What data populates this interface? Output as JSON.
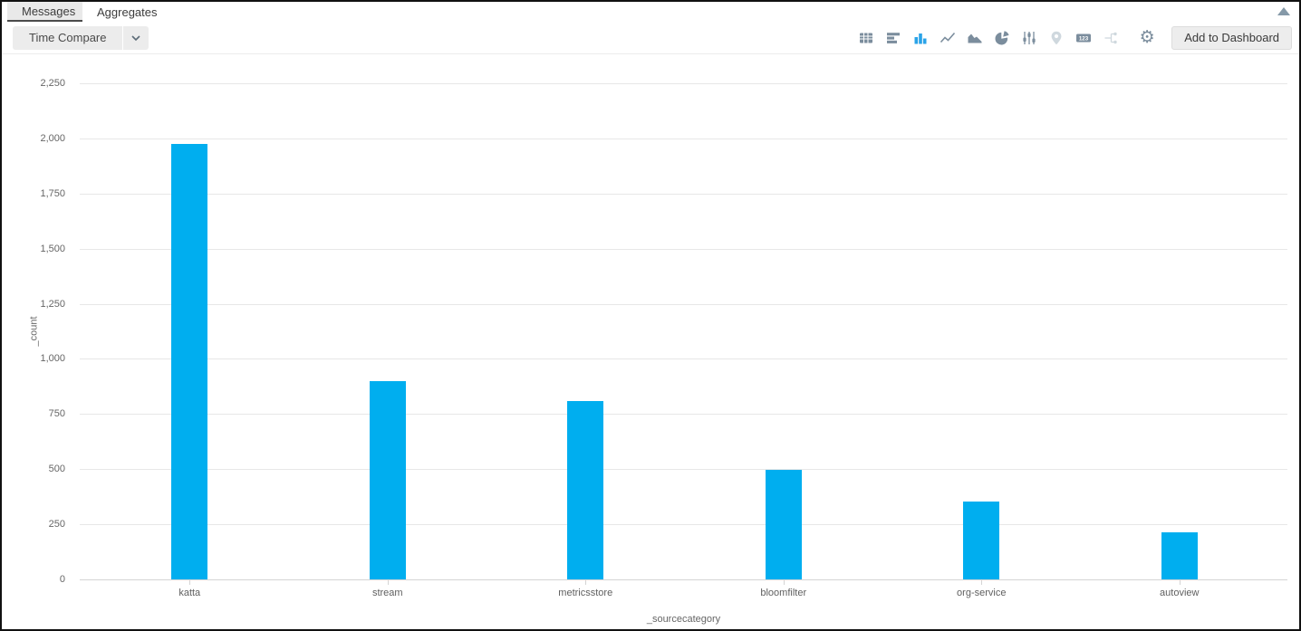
{
  "tabs": {
    "messages": "Messages",
    "aggregates": "Aggregates"
  },
  "toolbar": {
    "time_compare_label": "Time Compare",
    "add_to_dashboard_label": "Add to Dashboard",
    "single_value_icon_text": "123",
    "icons": [
      {
        "name": "table-icon",
        "state": "normal"
      },
      {
        "name": "horizontal-bar-chart-icon",
        "state": "normal"
      },
      {
        "name": "column-chart-icon",
        "state": "active"
      },
      {
        "name": "line-chart-icon",
        "state": "normal"
      },
      {
        "name": "area-chart-icon",
        "state": "normal"
      },
      {
        "name": "pie-chart-icon",
        "state": "normal"
      },
      {
        "name": "box-plot-icon",
        "state": "normal"
      },
      {
        "name": "map-icon",
        "state": "disabled"
      },
      {
        "name": "single-value-icon",
        "state": "normal"
      },
      {
        "name": "transaction-icon",
        "state": "disabled"
      },
      {
        "name": "settings-icon",
        "state": "normal"
      }
    ]
  },
  "colors": {
    "bar_blue": "#00aeef",
    "active_icon_blue": "#2aa3e8",
    "icon_slate": "#7b8d9d",
    "icon_disabled": "#cfd8de"
  },
  "chart_data": {
    "type": "bar",
    "categories": [
      "katta",
      "stream",
      "metricsstore",
      "bloomfilter",
      "org-service",
      "autoview"
    ],
    "values": [
      1975,
      900,
      810,
      495,
      355,
      215
    ],
    "title": "",
    "xlabel": "_sourcecategory",
    "ylabel": "_count",
    "ylim": [
      0,
      2250
    ],
    "ytick_step": 250,
    "ytick_labels": [
      "0",
      "250",
      "500",
      "750",
      "1,000",
      "1,250",
      "1,500",
      "1,750",
      "2,000",
      "2,250"
    ],
    "grid": true,
    "legend": "none",
    "bar_color": "#00aeef"
  }
}
